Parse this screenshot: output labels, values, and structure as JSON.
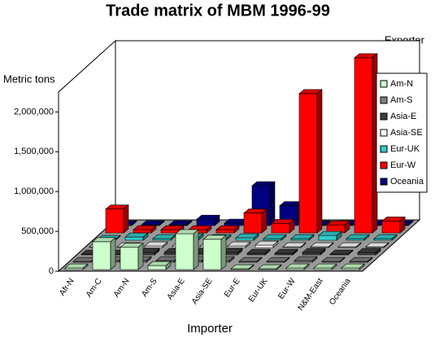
{
  "chart_data": {
    "type": "bar3d",
    "title": "Trade matrix of MBM 1996-99",
    "y_label": "Metric tons",
    "x_label": "Importer",
    "legend_title": "Exporter",
    "categories": [
      "Afr-N",
      "Am-C",
      "Am-N",
      "Am-S",
      "Asia-E",
      "Asia-SE",
      "Eur-E",
      "Eur-UK",
      "Eur-W",
      "N&M-East",
      "Oceania"
    ],
    "series": [
      {
        "name": "Am-N",
        "color": "#ccffcc",
        "values": [
          20000,
          350000,
          280000,
          50000,
          450000,
          380000,
          10000,
          10000,
          20000,
          20000,
          20000
        ]
      },
      {
        "name": "Am-S",
        "color": "#808080",
        "values": [
          10000,
          20000,
          20000,
          20000,
          20000,
          20000,
          10000,
          10000,
          20000,
          10000,
          10000
        ]
      },
      {
        "name": "Asia-E",
        "color": "#404040",
        "values": [
          10000,
          10000,
          30000,
          30000,
          30000,
          30000,
          20000,
          20000,
          30000,
          10000,
          30000
        ]
      },
      {
        "name": "Asia-SE",
        "color": "#ffffff",
        "values": [
          10000,
          10000,
          20000,
          20000,
          20000,
          20000,
          30000,
          10000,
          10000,
          10000,
          10000
        ]
      },
      {
        "name": "Eur-UK",
        "color": "#33cccc",
        "values": [
          10000,
          40000,
          20000,
          30000,
          20000,
          30000,
          20000,
          20000,
          60000,
          20000,
          20000
        ]
      },
      {
        "name": "Eur-W",
        "color": "#ff0000",
        "values": [
          300000,
          40000,
          40000,
          40000,
          40000,
          250000,
          120000,
          1750000,
          100000,
          2200000,
          150000
        ]
      },
      {
        "name": "Oceania",
        "color": "#000080",
        "values": [
          10000,
          10000,
          10000,
          80000,
          30000,
          500000,
          250000,
          10000,
          10000,
          10000,
          10000
        ]
      }
    ],
    "ylim": [
      0,
      2250000
    ],
    "yticks": [
      0,
      {
        "value": 500000,
        "label": "500,000"
      },
      {
        "value": 1000000,
        "label": "1,000,000"
      },
      {
        "value": 1500000,
        "label": "1,500,000"
      },
      {
        "value": 2000000,
        "label": "2,000,000"
      }
    ],
    "legend": "right"
  }
}
